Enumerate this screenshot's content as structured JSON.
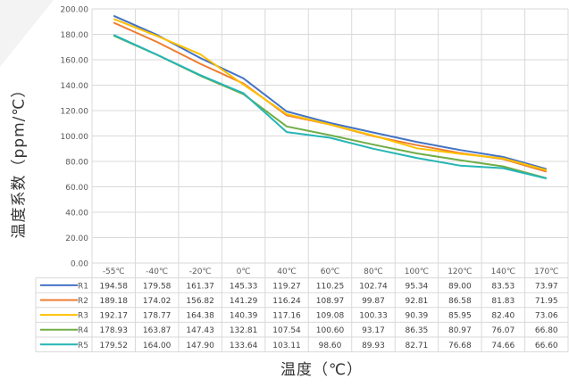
{
  "chart_data": {
    "type": "line",
    "xlabel": "温度（℃）",
    "ylabel": "温度系数（ppm/℃）",
    "categories": [
      "-55℃",
      "-40℃",
      "-20℃",
      "0℃",
      "40℃",
      "60℃",
      "80℃",
      "100℃",
      "120℃",
      "140℃",
      "170℃"
    ],
    "ylim": [
      0,
      200
    ],
    "yticks": [
      "0.00",
      "20.00",
      "40.00",
      "60.00",
      "80.00",
      "100.00",
      "120.00",
      "140.00",
      "160.00",
      "180.00",
      "200.00"
    ],
    "grid": true,
    "legend": "table-below",
    "series": [
      {
        "name": "R1",
        "color": "#4472C4",
        "values": [
          194.58,
          179.58,
          161.37,
          145.33,
          119.27,
          110.25,
          102.74,
          95.34,
          89.0,
          83.53,
          73.97
        ],
        "labels": [
          "194.58",
          "179.58",
          "161.37",
          "145.33",
          "119.27",
          "110.25",
          "102.74",
          "95.34",
          "89.00",
          "83.53",
          "73.97"
        ]
      },
      {
        "name": "R2",
        "color": "#ED7D31",
        "values": [
          189.18,
          174.02,
          156.82,
          141.29,
          116.24,
          108.97,
          99.87,
          92.81,
          86.58,
          81.83,
          71.95
        ],
        "labels": [
          "189.18",
          "174.02",
          "156.82",
          "141.29",
          "116.24",
          "108.97",
          "99.87",
          "92.81",
          "86.58",
          "81.83",
          "71.95"
        ]
      },
      {
        "name": "R3",
        "color": "#FFC000",
        "values": [
          192.17,
          178.77,
          164.38,
          140.39,
          117.16,
          109.08,
          100.33,
          90.39,
          85.95,
          82.4,
          73.06
        ],
        "labels": [
          "192.17",
          "178.77",
          "164.38",
          "140.39",
          "117.16",
          "109.08",
          "100.33",
          "90.39",
          "85.95",
          "82.40",
          "73.06"
        ]
      },
      {
        "name": "R4",
        "color": "#70AD47",
        "values": [
          178.93,
          163.87,
          147.43,
          132.81,
          107.54,
          100.6,
          93.17,
          86.35,
          80.97,
          76.07,
          66.8
        ],
        "labels": [
          "178.93",
          "163.87",
          "147.43",
          "132.81",
          "107.54",
          "100.60",
          "93.17",
          "86.35",
          "80.97",
          "76.07",
          "66.80"
        ]
      },
      {
        "name": "R5",
        "color": "#26B5B5",
        "values": [
          179.52,
          164.0,
          147.9,
          133.64,
          103.11,
          98.6,
          89.93,
          82.71,
          76.68,
          74.66,
          66.6
        ],
        "labels": [
          "179.52",
          "164.00",
          "147.90",
          "133.64",
          "103.11",
          "98.60",
          "89.93",
          "82.71",
          "76.68",
          "74.66",
          "66.60"
        ]
      }
    ]
  }
}
